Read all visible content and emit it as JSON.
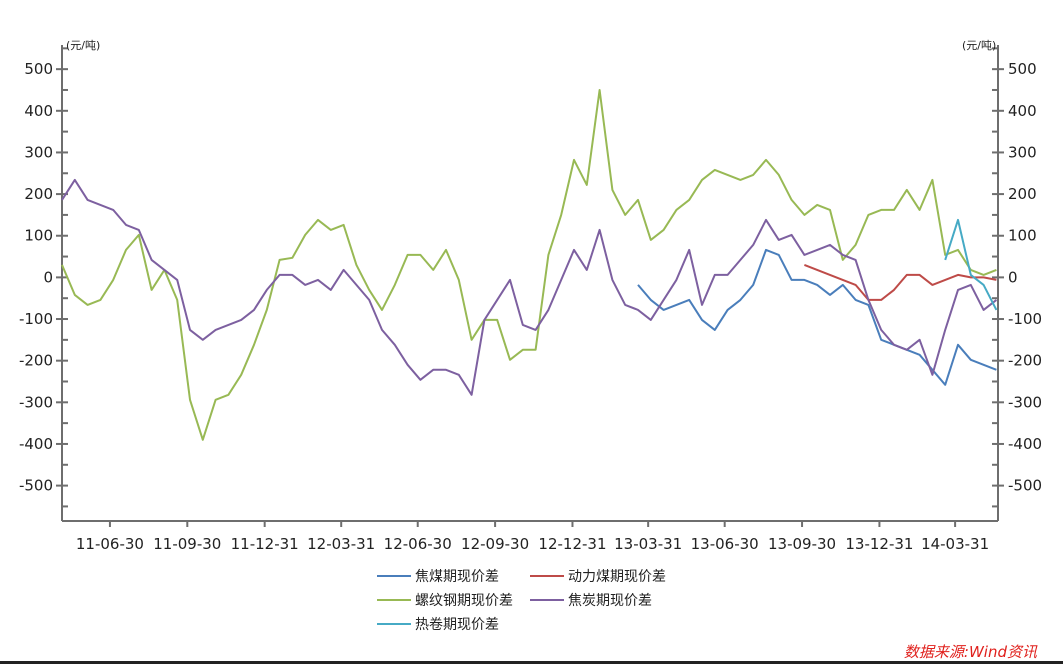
{
  "chart_data": {
    "type": "line",
    "title": "",
    "xlabel": "",
    "ylabel": "(元/吨)",
    "ylabel_right": "(元/吨)",
    "ylim": [
      -585,
      558
    ],
    "yticks": [
      500,
      400,
      300,
      200,
      100,
      0,
      -100,
      -200,
      -300,
      -400,
      -500
    ],
    "xlim": [
      "2011-05-04",
      "2014-05-21"
    ],
    "xticks": [
      {
        "label": "11-06-30",
        "date": "2011-06-30"
      },
      {
        "label": "11-09-30",
        "date": "2011-09-30"
      },
      {
        "label": "11-12-31",
        "date": "2011-12-31"
      },
      {
        "label": "12-03-31",
        "date": "2012-03-31"
      },
      {
        "label": "12-06-30",
        "date": "2012-06-30"
      },
      {
        "label": "12-09-30",
        "date": "2012-09-30"
      },
      {
        "label": "12-12-31",
        "date": "2012-12-31"
      },
      {
        "label": "13-03-31",
        "date": "2013-03-31"
      },
      {
        "label": "13-06-30",
        "date": "2013-06-30"
      },
      {
        "label": "13-09-30",
        "date": "2013-09-30"
      },
      {
        "label": "13-12-31",
        "date": "2013-12-31"
      },
      {
        "label": "14-03-31",
        "date": "2014-03-31"
      }
    ],
    "x_start": "2011-05-04",
    "x_step_days": 15.22,
    "grid": false,
    "legend_position": "bottom-center",
    "series": [
      {
        "name": "焦煤期现价差",
        "color": "#4a7ebb",
        "start_index": 45,
        "values": [
          -18,
          -54,
          -78,
          -66,
          -54,
          -102,
          -126,
          -78,
          -54,
          -18,
          66,
          54,
          -6,
          -6,
          -18,
          -42,
          -18,
          -54,
          -66,
          -150,
          -162,
          -174,
          -186,
          -222,
          -258,
          -162,
          -198,
          -210,
          -222
        ]
      },
      {
        "name": "动力煤期现价差",
        "color": "#be4b48",
        "start_index": 58,
        "values": [
          30,
          18,
          6,
          -6,
          -18,
          -54,
          -54,
          -30,
          6,
          6,
          -18,
          -6,
          6,
          0,
          0,
          -6
        ]
      },
      {
        "name": "螺纹钢期现价差",
        "color": "#98b954",
        "start_index": 0,
        "values": [
          30,
          -42,
          -66,
          -54,
          -6,
          66,
          102,
          -30,
          18,
          -54,
          -294,
          -390,
          -294,
          -282,
          -234,
          -162,
          -78,
          42,
          47,
          102,
          138,
          114,
          126,
          30,
          -30,
          -78,
          -18,
          54,
          54,
          18,
          66,
          -6,
          -150,
          -102,
          -102,
          -198,
          -174,
          -174,
          54,
          150,
          282,
          222,
          450,
          210,
          150,
          186,
          90,
          114,
          162,
          186,
          234,
          258,
          246,
          234,
          246,
          282,
          246,
          186,
          150,
          174,
          162,
          42,
          78,
          150,
          162,
          162,
          210,
          162,
          234,
          54,
          66,
          18,
          6,
          18
        ]
      },
      {
        "name": "焦炭期现价差",
        "color": "#7d60a0",
        "start_index": 0,
        "values": [
          186,
          234,
          186,
          174,
          162,
          126,
          114,
          42,
          18,
          -6,
          -126,
          -150,
          -126,
          -114,
          -102,
          -78,
          -30,
          6,
          6,
          -18,
          -6,
          -30,
          18,
          -18,
          -54,
          -126,
          -162,
          -210,
          -246,
          -222,
          -222,
          -234,
          -282,
          -102,
          -54,
          -6,
          -114,
          -126,
          -78,
          -6,
          66,
          18,
          114,
          -6,
          -66,
          -78,
          -102,
          -54,
          -6,
          66,
          -66,
          6,
          6,
          42,
          78,
          138,
          90,
          102,
          54,
          66,
          78,
          54,
          42,
          -54,
          -126,
          -162,
          -174,
          -150,
          -234,
          -126,
          -30,
          -18,
          -78,
          -54
        ]
      },
      {
        "name": "热卷期现价差",
        "color": "#46aac5",
        "start_index": 69,
        "values": [
          42,
          138,
          6,
          -18,
          -78
        ]
      }
    ]
  },
  "source": "数据来源:Wind资讯"
}
